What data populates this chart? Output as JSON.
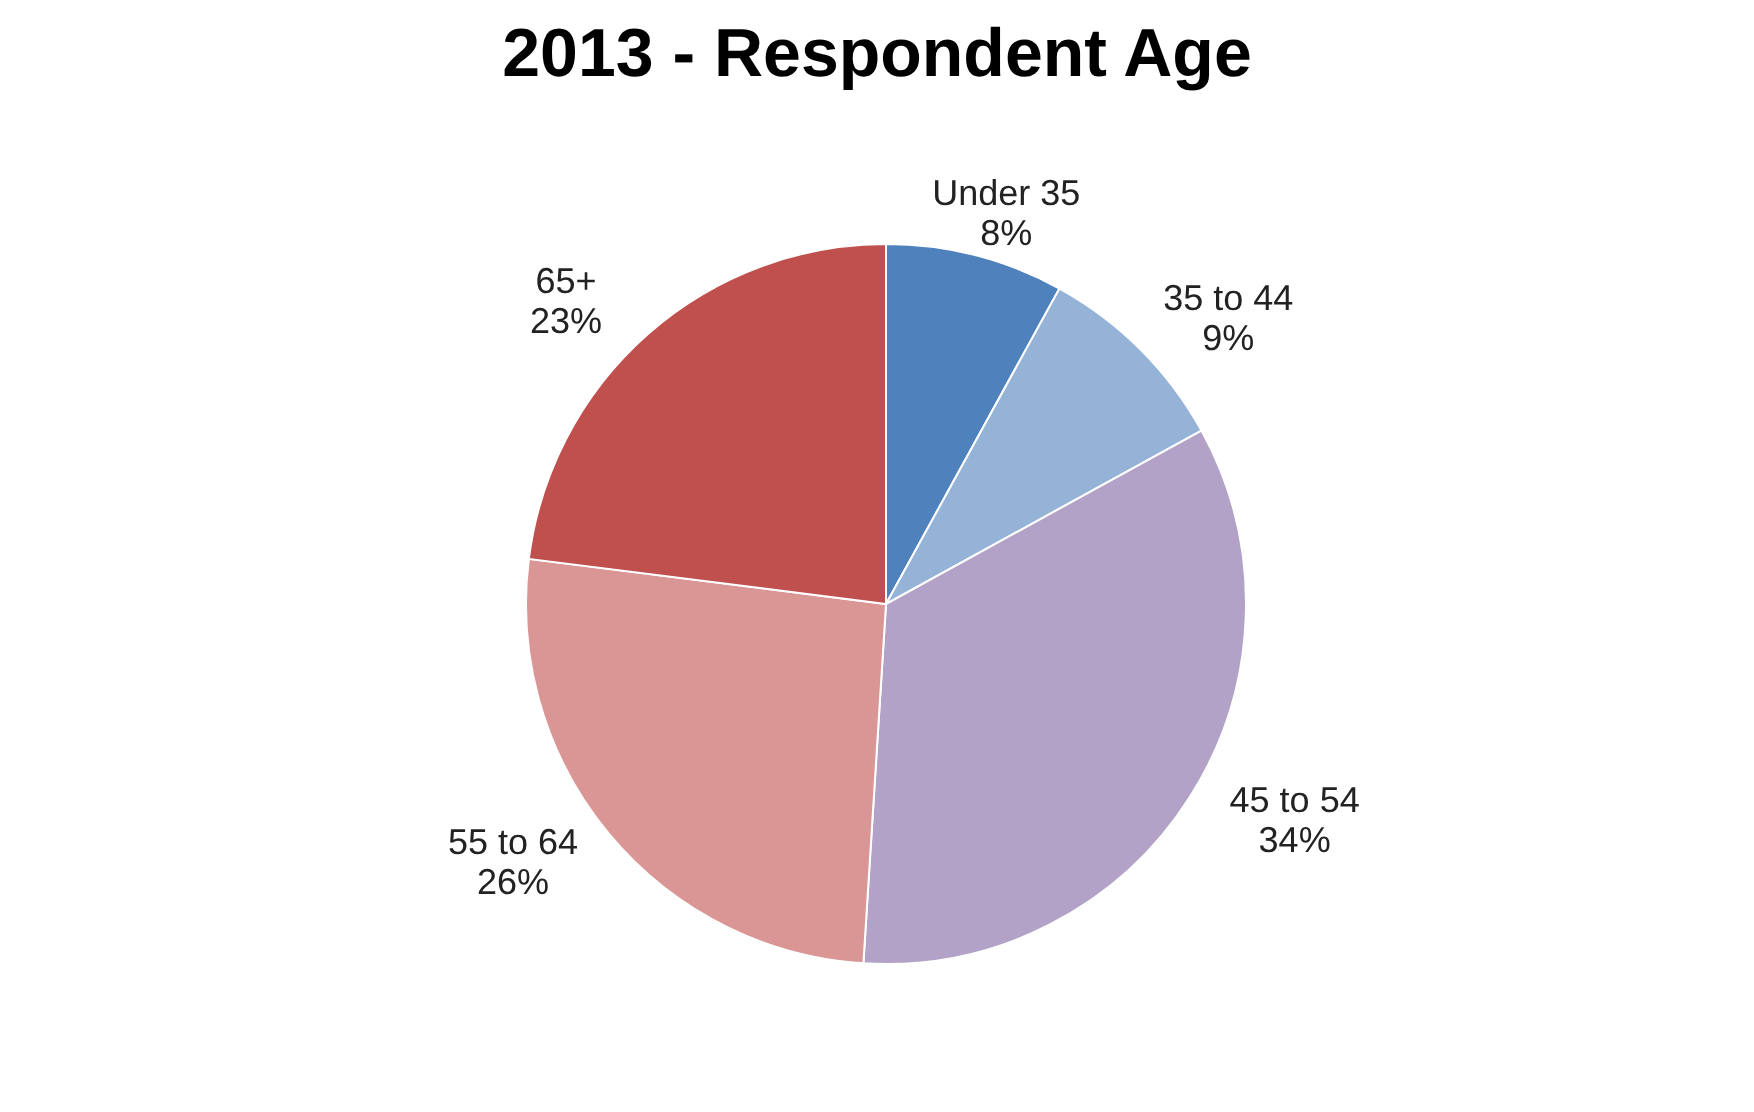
{
  "chart_data": {
    "type": "pie",
    "title": "2013 - Respondent Age",
    "categories": [
      "Under 35",
      "35 to 44",
      "45 to 54",
      "55 to 64",
      "65+"
    ],
    "values": [
      8,
      9,
      34,
      26,
      23
    ],
    "value_labels": [
      "8%",
      "9%",
      "34%",
      "26%",
      "23%"
    ],
    "colors": [
      "#4f81bd",
      "#95b3d7",
      "#b3a2c7",
      "#d99694",
      "#c0504d"
    ]
  }
}
